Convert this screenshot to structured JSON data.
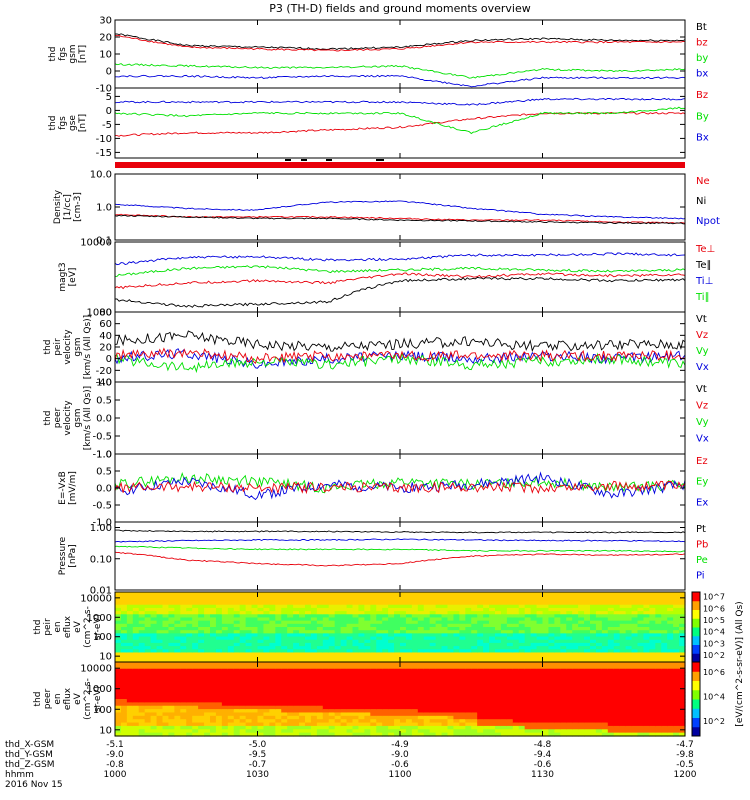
{
  "title": "P3 (TH-D) fields and ground moments overview",
  "colors": {
    "black": "#000000",
    "red": "#e8000b",
    "green": "#00e000",
    "blue": "#0000dd"
  },
  "chart_data": [
    {
      "type": "line",
      "id": "fgs_gsm",
      "ylabel": [
        "thd",
        "fgs",
        "gsm",
        "[nT]"
      ],
      "ylim": [
        -10,
        30
      ],
      "yticks": [
        "-10",
        "0",
        "10",
        "20",
        "30"
      ],
      "legend": [
        {
          "label": "Bt",
          "color": "#000000"
        },
        {
          "label": "bz",
          "color": "#e8000b"
        },
        {
          "label": "by",
          "color": "#00e000"
        },
        {
          "label": "bx",
          "color": "#0000dd"
        }
      ],
      "x": [
        0,
        15,
        30,
        45,
        60,
        75,
        90,
        105,
        120
      ],
      "series": [
        {
          "name": "Bt",
          "color": "#000000",
          "values": [
            22,
            15,
            14,
            13,
            14,
            18,
            19,
            18,
            18
          ]
        },
        {
          "name": "bz",
          "color": "#e8000b",
          "values": [
            21,
            14,
            13,
            12,
            13,
            17,
            17,
            17,
            17
          ]
        },
        {
          "name": "by",
          "color": "#00e000",
          "values": [
            4,
            3,
            2,
            2,
            3,
            -4,
            1,
            0,
            1
          ]
        },
        {
          "name": "bx",
          "color": "#0000dd",
          "values": [
            -3,
            -3,
            -4,
            -3,
            -3,
            -9,
            -4,
            -4,
            -4
          ]
        }
      ]
    },
    {
      "type": "line",
      "id": "fgs_gse",
      "ylabel": [
        "thd",
        "fgs",
        "gse",
        "[nT]"
      ],
      "ylim": [
        -17,
        8
      ],
      "yticks": [
        "-15",
        "-10",
        "-5",
        "0",
        "5"
      ],
      "legend": [
        {
          "label": "Bz",
          "color": "#e8000b"
        },
        {
          "label": "By",
          "color": "#00e000"
        },
        {
          "label": "Bx",
          "color": "#0000dd"
        }
      ],
      "x": [
        0,
        15,
        30,
        45,
        60,
        75,
        90,
        105,
        120
      ],
      "series": [
        {
          "name": "Bz",
          "color": "#e8000b",
          "values": [
            -9,
            -8,
            -8,
            -7,
            -6,
            -3,
            -1,
            -1,
            -1
          ]
        },
        {
          "name": "By",
          "color": "#00e000",
          "values": [
            -1,
            -2,
            -1,
            -1,
            -1,
            -8,
            -1,
            -1,
            1
          ]
        },
        {
          "name": "Bx",
          "color": "#0000dd",
          "values": [
            3,
            3,
            3,
            3,
            3,
            2,
            4,
            4,
            4
          ]
        }
      ]
    },
    {
      "type": "line",
      "id": "density",
      "ylabel": [
        "Density",
        "[1/cc]",
        "[cm-3]"
      ],
      "yscale": "log",
      "ylim": [
        0.1,
        10
      ],
      "yticks": [
        "0.1",
        "1.0",
        "10.0"
      ],
      "legend": [
        {
          "label": "Ne",
          "color": "#e8000b"
        },
        {
          "label": "Ni",
          "color": "#000000"
        },
        {
          "label": "Npot",
          "color": "#0000dd"
        }
      ],
      "x": [
        0,
        15,
        30,
        45,
        60,
        75,
        90,
        105,
        120
      ],
      "series": [
        {
          "name": "Npot",
          "color": "#0000dd",
          "values": [
            1.2,
            0.9,
            0.8,
            1.4,
            1.5,
            0.9,
            0.6,
            0.5,
            0.45
          ]
        },
        {
          "name": "Ne",
          "color": "#e8000b",
          "values": [
            0.6,
            0.5,
            0.5,
            0.5,
            0.45,
            0.4,
            0.4,
            0.35,
            0.33
          ]
        },
        {
          "name": "Ni",
          "color": "#000000",
          "values": [
            0.55,
            0.5,
            0.45,
            0.45,
            0.4,
            0.38,
            0.35,
            0.33,
            0.32
          ]
        }
      ]
    },
    {
      "type": "line",
      "id": "temperature",
      "ylabel": [
        "magt3",
        "[eV]"
      ],
      "yscale": "log",
      "ylim": [
        1000,
        10000
      ],
      "yticks": [
        "1000",
        "10000"
      ],
      "legend": [
        {
          "label": "Te⊥",
          "color": "#e8000b"
        },
        {
          "label": "Te∥",
          "color": "#000000"
        },
        {
          "label": "Ti⊥",
          "color": "#0000dd"
        },
        {
          "label": "Ti∥",
          "color": "#00e000"
        }
      ],
      "x": [
        0,
        15,
        30,
        45,
        60,
        75,
        90,
        105,
        120
      ],
      "series": [
        {
          "name": "Ti⊥",
          "color": "#0000dd",
          "values": [
            4800,
            6000,
            6200,
            5500,
            5700,
            6500,
            6500,
            6800,
            6500
          ]
        },
        {
          "name": "Ti∥",
          "color": "#00e000",
          "values": [
            3300,
            4200,
            4500,
            3800,
            4000,
            4200,
            4000,
            3800,
            4000
          ]
        },
        {
          "name": "Te⊥",
          "color": "#e8000b",
          "values": [
            2200,
            2600,
            2800,
            2600,
            3500,
            3200,
            3500,
            3300,
            3400
          ]
        },
        {
          "name": "Te∥",
          "color": "#000000",
          "values": [
            1500,
            1200,
            1300,
            1400,
            2800,
            3000,
            3000,
            2800,
            2900
          ]
        }
      ]
    },
    {
      "type": "line",
      "id": "peir_velocity",
      "ylabel": [
        "thd",
        "peir",
        "velocity",
        "gsm",
        "[km/s (All Qs)]"
      ],
      "ylim": [
        -40,
        80
      ],
      "yticks": [
        "-40",
        "-20",
        "0",
        "20",
        "40",
        "60",
        "80"
      ],
      "legend": [
        {
          "label": "Vt",
          "color": "#000000"
        },
        {
          "label": "Vz",
          "color": "#e8000b"
        },
        {
          "label": "Vy",
          "color": "#00e000"
        },
        {
          "label": "Vx",
          "color": "#0000dd"
        }
      ],
      "x": [
        0,
        15,
        30,
        45,
        60,
        75,
        90,
        105,
        120
      ],
      "series": [
        {
          "name": "Vt",
          "color": "#000000",
          "values": [
            30,
            40,
            25,
            20,
            25,
            30,
            20,
            25,
            25
          ]
        },
        {
          "name": "Vx",
          "color": "#0000dd",
          "values": [
            0,
            10,
            -10,
            0,
            5,
            0,
            5,
            0,
            5
          ]
        },
        {
          "name": "Vy",
          "color": "#00e000",
          "values": [
            0,
            -15,
            -5,
            -10,
            0,
            -10,
            -5,
            0,
            -10
          ]
        },
        {
          "name": "Vz",
          "color": "#e8000b",
          "values": [
            5,
            10,
            0,
            5,
            5,
            5,
            5,
            5,
            5
          ]
        }
      ]
    },
    {
      "type": "line",
      "id": "peer_velocity",
      "ylabel": [
        "thd",
        "peer",
        "velocity",
        "gsm",
        "[km/s (All Qs)]"
      ],
      "ylim": [
        -1,
        1
      ],
      "yticks": [
        "-1.0",
        "-0.5",
        "0.0",
        "0.5",
        "1.0"
      ],
      "legend": [
        {
          "label": "Vt",
          "color": "#000000"
        },
        {
          "label": "Vz",
          "color": "#e8000b"
        },
        {
          "label": "Vy",
          "color": "#00e000"
        },
        {
          "label": "Vx",
          "color": "#0000dd"
        }
      ],
      "x": [],
      "series": []
    },
    {
      "type": "line",
      "id": "efield",
      "ylabel": [
        "E=-VxB",
        "[mV/m]"
      ],
      "ylim": [
        -1,
        1
      ],
      "yticks": [
        "-1.0",
        "-0.5",
        "0.0",
        "0.5",
        "1.0"
      ],
      "legend": [
        {
          "label": "Ez",
          "color": "#e8000b"
        },
        {
          "label": "Ey",
          "color": "#00e000"
        },
        {
          "label": "Ex",
          "color": "#0000dd"
        }
      ],
      "x": [
        0,
        15,
        30,
        45,
        60,
        75,
        90,
        105,
        120
      ],
      "series": [
        {
          "name": "Ey",
          "color": "#00e000",
          "values": [
            0.1,
            0.3,
            0.2,
            0.0,
            0.2,
            0.1,
            0.2,
            0.0,
            0.1
          ]
        },
        {
          "name": "Ex",
          "color": "#0000dd",
          "values": [
            -0.1,
            0.2,
            -0.2,
            0.1,
            0.0,
            0.1,
            0.3,
            -0.2,
            0.1
          ]
        },
        {
          "name": "Ez",
          "color": "#e8000b",
          "values": [
            0.0,
            0.05,
            0.0,
            0.02,
            0.0,
            0.03,
            0.0,
            0.05,
            0.05
          ]
        }
      ]
    },
    {
      "type": "line",
      "id": "pressure",
      "ylabel": [
        "Pressure",
        "[nPa]"
      ],
      "yscale": "log",
      "ylim": [
        0.01,
        1.5
      ],
      "yticks": [
        "0.01",
        "0.10",
        "1.00"
      ],
      "legend": [
        {
          "label": "Pt",
          "color": "#000000"
        },
        {
          "label": "Pb",
          "color": "#e8000b"
        },
        {
          "label": "Pe",
          "color": "#00e000"
        },
        {
          "label": "Pi",
          "color": "#0000dd"
        }
      ],
      "x": [
        0,
        15,
        30,
        45,
        60,
        75,
        90,
        105,
        120
      ],
      "series": [
        {
          "name": "Pt",
          "color": "#000000",
          "values": [
            0.8,
            0.75,
            0.75,
            0.75,
            0.72,
            0.7,
            0.7,
            0.7,
            0.7
          ]
        },
        {
          "name": "Pi",
          "color": "#0000dd",
          "values": [
            0.35,
            0.38,
            0.4,
            0.4,
            0.42,
            0.4,
            0.38,
            0.38,
            0.36
          ]
        },
        {
          "name": "Pe",
          "color": "#00e000",
          "values": [
            0.25,
            0.22,
            0.2,
            0.2,
            0.2,
            0.18,
            0.18,
            0.18,
            0.17
          ]
        },
        {
          "name": "Pb",
          "color": "#e8000b",
          "values": [
            0.16,
            0.09,
            0.07,
            0.06,
            0.07,
            0.12,
            0.14,
            0.13,
            0.14
          ]
        }
      ]
    },
    {
      "type": "heatmap",
      "id": "peir_eflux",
      "ylabel": [
        "thd",
        "peir",
        "en",
        "eflux",
        "eV",
        "(cm^2-s-",
        "sr-eV)"
      ],
      "yscale": "log",
      "ylim": [
        5,
        20000
      ],
      "yticks": [
        "10",
        "100",
        "1000",
        "10000"
      ]
    },
    {
      "type": "heatmap",
      "id": "peer_eflux",
      "ylabel": [
        "thd",
        "peer",
        "en",
        "eflux",
        "eV",
        "(cm^2-s-",
        "sr-eV)"
      ],
      "yscale": "log",
      "ylim": [
        5,
        20000
      ],
      "yticks": [
        "10",
        "100",
        "1000",
        "10000"
      ]
    }
  ],
  "colorbars": [
    {
      "label": "[eV/(cm^2-s-sr-eV)] (All Qs)",
      "ticks": [
        "10^2",
        "10^3",
        "10^4",
        "10^5",
        "10^6",
        "10^7"
      ]
    },
    {
      "label": "[eV/(cm^2-s-sr-eV)]",
      "ticks": [
        "10^2",
        "10^4",
        "10^6"
      ]
    }
  ],
  "x_axis": {
    "rows": [
      {
        "label": "thd_X-GSM",
        "values": [
          "-5.1",
          "-5.0",
          "-4.9",
          "-4.8",
          "-4.7"
        ]
      },
      {
        "label": "thd_Y-GSM",
        "values": [
          "-9.0",
          "-9.5",
          "-9.0",
          "-9.4",
          "-9.8"
        ]
      },
      {
        "label": "thd_Z-GSM",
        "values": [
          "-0.8",
          "-0.7",
          "-0.6",
          "-0.6",
          "-0.5"
        ]
      },
      {
        "label": "hhmm",
        "values": [
          "1000",
          "1030",
          "1100",
          "1130",
          "1200"
        ]
      }
    ],
    "date": "2016 Nov 15"
  }
}
